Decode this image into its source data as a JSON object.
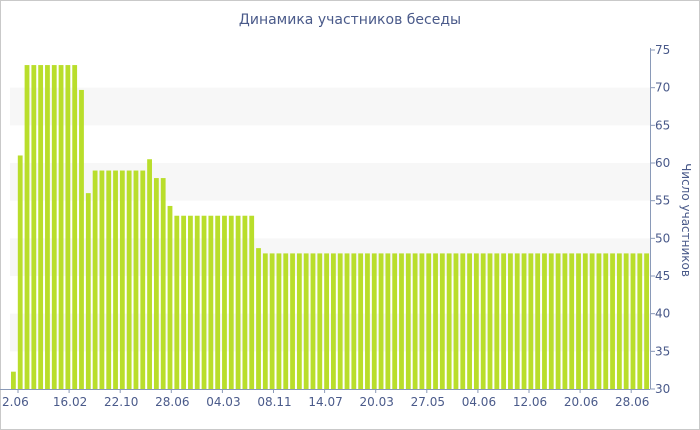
{
  "chart_data": {
    "type": "bar",
    "title": "Динамика участников беседы",
    "xlabel": "",
    "ylabel": "Число участников",
    "ylim": [
      30,
      75
    ],
    "y_ticks": [
      30,
      35,
      40,
      45,
      50,
      55,
      60,
      65,
      70,
      75
    ],
    "y_axis_side": "right",
    "grid": "alternating horizontal bands",
    "bar_color": "#b9de2b",
    "band_color": "#f7f7f7",
    "x_tick_labels": [
      "2.06",
      "16.02",
      "22.10",
      "28.06",
      "04.03",
      "08.11",
      "14.07",
      "20.03",
      "27.05",
      "04.06",
      "12.06",
      "20.06",
      "28.06"
    ],
    "values": [
      32.3,
      61,
      73,
      73,
      73,
      73,
      73,
      73,
      73,
      73,
      69.7,
      56,
      59,
      59,
      59,
      59,
      59,
      59,
      59,
      59,
      60.5,
      58,
      58,
      54.3,
      53,
      53,
      53,
      53,
      53,
      53,
      53,
      53,
      53,
      53,
      53,
      53,
      48.7,
      48,
      48,
      48,
      48,
      48,
      48,
      48,
      48,
      48,
      48,
      48,
      48,
      48,
      48,
      48,
      48,
      48,
      48,
      48,
      48,
      48,
      48,
      48,
      48,
      48,
      48,
      48,
      48,
      48,
      48,
      48,
      48,
      48,
      48,
      48,
      48,
      48,
      48,
      48,
      48,
      48,
      48,
      48,
      48,
      48,
      48,
      48,
      48,
      48,
      48,
      48,
      48,
      48,
      48,
      48,
      48,
      48
    ]
  }
}
